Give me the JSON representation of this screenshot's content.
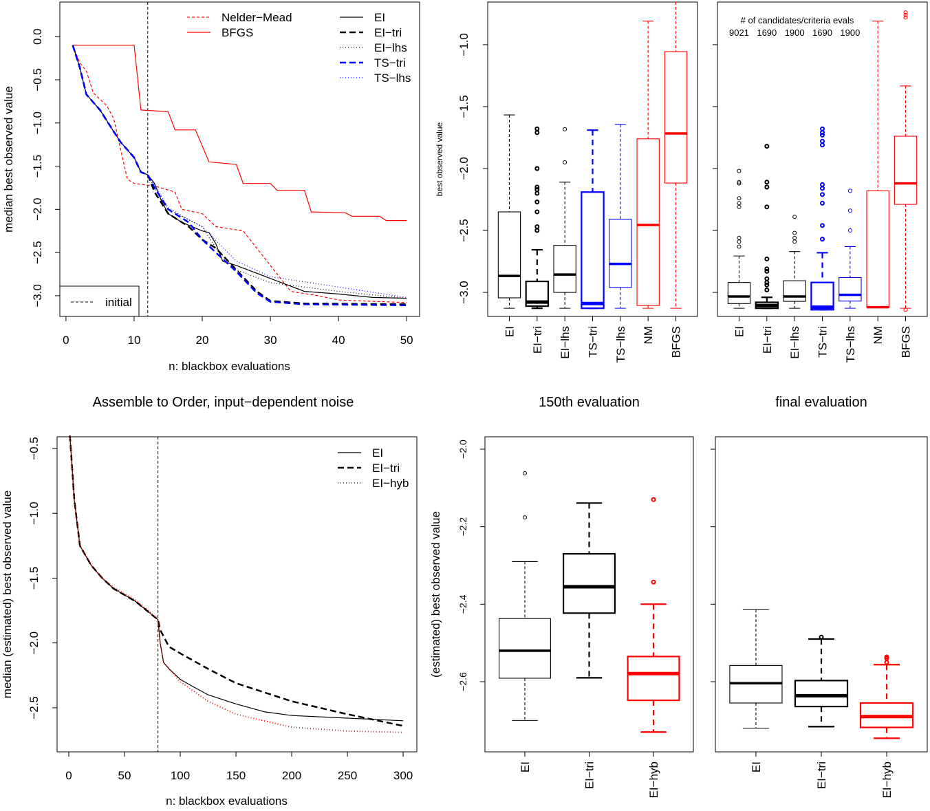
{
  "chart_data": [
    {
      "id": "p1",
      "type": "line",
      "xlabel": "n: blackbox evaluations",
      "ylabel": "median best observed value",
      "xlim": [
        -0.9,
        51.9
      ],
      "ylim": [
        -3.24,
        0.4
      ],
      "xticks": [
        0,
        10,
        20,
        30,
        40,
        50
      ],
      "yticks": [
        0.0,
        -0.5,
        -1.0,
        -1.5,
        -2.0,
        -2.5,
        -3.0
      ],
      "ytick_labels": [
        "0.0",
        "−0.5",
        "−1.0",
        "−1.5",
        "−2.0",
        "−2.5",
        "−3.0"
      ],
      "vline": 12,
      "series": [
        {
          "name": "Nelder−Mead",
          "color": "#ff0000",
          "lty": "dashed-thin",
          "x": [
            1,
            2,
            3,
            4,
            6,
            7,
            8,
            9,
            10,
            13,
            16,
            17,
            20,
            22,
            26,
            28,
            30,
            31,
            33,
            37,
            40,
            50
          ],
          "y": [
            -0.1,
            -0.3,
            -0.4,
            -0.65,
            -0.8,
            -0.95,
            -1.3,
            -1.65,
            -1.7,
            -1.73,
            -1.8,
            -2.0,
            -2.05,
            -2.2,
            -2.25,
            -2.45,
            -2.65,
            -2.75,
            -2.95,
            -3.0,
            -3.05,
            -3.08
          ]
        },
        {
          "name": "BFGS",
          "color": "#ff0000",
          "lty": "solid",
          "x": [
            1,
            10,
            11,
            15,
            16,
            19,
            21,
            25,
            26,
            30,
            31,
            35,
            36,
            41,
            42,
            46,
            47,
            50
          ],
          "y": [
            -0.1,
            -0.1,
            -0.85,
            -0.87,
            -1.08,
            -1.08,
            -1.45,
            -1.48,
            -1.7,
            -1.7,
            -1.78,
            -1.78,
            -2.03,
            -2.04,
            -2.08,
            -2.08,
            -2.13,
            -2.13
          ]
        },
        {
          "name": "EI",
          "color": "#000000",
          "lty": "solid",
          "x": [
            1,
            2,
            3,
            5,
            7,
            8,
            10,
            11,
            12,
            13,
            14,
            15,
            17,
            20,
            21,
            22,
            23,
            25,
            30,
            35,
            40,
            45,
            50
          ],
          "y": [
            -0.1,
            -0.35,
            -0.67,
            -0.85,
            -1.1,
            -1.22,
            -1.4,
            -1.57,
            -1.6,
            -1.7,
            -1.9,
            -2.05,
            -2.15,
            -2.25,
            -2.27,
            -2.4,
            -2.6,
            -2.65,
            -2.8,
            -2.95,
            -2.98,
            -3.02,
            -3.03
          ]
        },
        {
          "name": "EI−tri",
          "color": "#000000",
          "lty": "dashed",
          "x": [
            1,
            2,
            3,
            5,
            7,
            8,
            10,
            11,
            12,
            13,
            15,
            18,
            20,
            22,
            25,
            28,
            30,
            35,
            50
          ],
          "y": [
            -0.1,
            -0.35,
            -0.67,
            -0.85,
            -1.1,
            -1.22,
            -1.4,
            -1.57,
            -1.6,
            -1.8,
            -2.05,
            -2.2,
            -2.35,
            -2.45,
            -2.7,
            -2.95,
            -3.06,
            -3.09,
            -3.1
          ]
        },
        {
          "name": "EI−lhs",
          "color": "#000000",
          "lty": "dotted",
          "x": [
            1,
            2,
            3,
            5,
            7,
            8,
            10,
            11,
            12,
            13,
            15,
            18,
            20,
            22,
            25,
            30,
            40,
            50
          ],
          "y": [
            -0.1,
            -0.35,
            -0.67,
            -0.85,
            -1.1,
            -1.22,
            -1.4,
            -1.57,
            -1.6,
            -1.75,
            -2.0,
            -2.12,
            -2.2,
            -2.45,
            -2.7,
            -2.85,
            -2.95,
            -3.03
          ]
        },
        {
          "name": "TS−tri",
          "color": "#0000ff",
          "lty": "dashed",
          "x": [
            1,
            2,
            3,
            5,
            7,
            8,
            10,
            11,
            12,
            13,
            15,
            18,
            20,
            22,
            25,
            28,
            30,
            35,
            50
          ],
          "y": [
            -0.1,
            -0.35,
            -0.67,
            -0.85,
            -1.1,
            -1.22,
            -1.4,
            -1.57,
            -1.6,
            -1.75,
            -2.0,
            -2.15,
            -2.35,
            -2.5,
            -2.72,
            -2.97,
            -3.07,
            -3.1,
            -3.11
          ]
        },
        {
          "name": "TS−lhs",
          "color": "#0000ff",
          "lty": "dotted",
          "x": [
            1,
            2,
            3,
            5,
            7,
            8,
            10,
            11,
            12,
            13,
            15,
            18,
            20,
            25,
            30,
            40,
            50
          ],
          "y": [
            -0.1,
            -0.35,
            -0.67,
            -0.85,
            -1.1,
            -1.22,
            -1.4,
            -1.57,
            -1.6,
            -1.72,
            -1.98,
            -2.12,
            -2.2,
            -2.6,
            -2.78,
            -2.9,
            -3.02
          ]
        }
      ],
      "legend_placement": "top-right",
      "initial_legend": {
        "label": "initial",
        "placement": "bottom-left"
      }
    },
    {
      "id": "p2",
      "type": "box",
      "ylabel": "best observed value",
      "ylim": [
        -3.194,
        -0.656
      ],
      "yticks": [
        -1.0,
        -1.5,
        -2.0,
        -2.5,
        -3.0
      ],
      "ytick_labels": [
        "−1.0",
        "−1.5",
        "−2.0",
        "−2.5",
        "−3.0"
      ],
      "categories": [
        "EI",
        "EI−tri",
        "EI−lhs",
        "TS−tri",
        "TS−lhs",
        "NM",
        "BFGS"
      ],
      "colors": [
        "#000000",
        "#000000",
        "#000000",
        "#0000ff",
        "#0000ff",
        "#ff0000",
        "#ff0000"
      ],
      "thick": [
        false,
        true,
        false,
        true,
        false,
        false,
        false
      ],
      "boxes": [
        {
          "lower": -3.128,
          "q1": -3.044,
          "median": -2.867,
          "q3": -2.35,
          "upper": -1.567,
          "outliers": []
        },
        {
          "lower": -3.128,
          "q1": -3.111,
          "median": -3.078,
          "q3": -2.911,
          "upper": -2.656,
          "outliers": [
            -1.68,
            -1.71,
            -2.0,
            -2.15,
            -2.17,
            -2.2,
            -2.27,
            -2.35,
            -2.47,
            -2.5
          ]
        },
        {
          "lower": -3.128,
          "q1": -3.0,
          "median": -2.856,
          "q3": -2.62,
          "upper": -2.11,
          "outliers": [
            -1.683,
            -1.95
          ]
        },
        {
          "lower": -3.128,
          "q1": -3.128,
          "median": -3.09,
          "q3": -2.19,
          "upper": -1.69,
          "outliers": []
        },
        {
          "lower": -3.128,
          "q1": -2.96,
          "median": -2.77,
          "q3": -2.41,
          "upper": -1.644,
          "outliers": []
        },
        {
          "lower": -3.128,
          "q1": -3.106,
          "median": -2.456,
          "q3": -1.76,
          "upper": -0.81,
          "outliers": []
        },
        {
          "lower": -3.128,
          "q1": -2.117,
          "median": -1.717,
          "q3": -1.056,
          "upper": -0.6,
          "outliers": []
        }
      ]
    },
    {
      "id": "p3",
      "type": "box",
      "ylim": [
        -3.194,
        -0.656
      ],
      "categories": [
        "EI",
        "EI−tri",
        "EI−lhs",
        "TS−tri",
        "TS−lhs",
        "NM",
        "BFGS"
      ],
      "colors": [
        "#000000",
        "#000000",
        "#000000",
        "#0000ff",
        "#0000ff",
        "#ff0000",
        "#ff0000"
      ],
      "thick": [
        false,
        true,
        false,
        true,
        false,
        false,
        false
      ],
      "annotation": {
        "title": "# of candidates/criteria evals",
        "values": [
          "9021",
          "1690",
          "1900",
          "1690",
          "1900"
        ]
      },
      "boxes": [
        {
          "lower": -3.128,
          "q1": -3.09,
          "median": -3.033,
          "q3": -2.92,
          "upper": -2.706,
          "outliers": [
            -2.02,
            -2.11,
            -2.12,
            -2.24,
            -2.28,
            -2.31,
            -2.56,
            -2.59,
            -2.63
          ]
        },
        {
          "lower": -3.128,
          "q1": -3.128,
          "median": -3.106,
          "q3": -3.08,
          "upper": -3.04,
          "outliers": [
            -1.82,
            -2.11,
            -2.15,
            -2.31,
            -2.73,
            -2.81,
            -2.83,
            -2.89,
            -2.92,
            -2.94,
            -2.98
          ]
        },
        {
          "lower": -3.128,
          "q1": -3.072,
          "median": -3.033,
          "q3": -2.906,
          "upper": -2.67,
          "outliers": [
            -2.39,
            -2.52,
            -2.56,
            -2.59
          ]
        },
        {
          "lower": -3.14,
          "q1": -3.14,
          "median": -3.12,
          "q3": -2.92,
          "upper": -2.68,
          "outliers": [
            -1.68,
            -1.71,
            -1.73,
            -1.78,
            -1.81,
            -2.13,
            -2.16,
            -2.21,
            -2.28,
            -2.46,
            -2.57
          ]
        },
        {
          "lower": -3.128,
          "q1": -3.07,
          "median": -3.02,
          "q3": -2.88,
          "upper": -2.63,
          "outliers": [
            -2.18,
            -2.34,
            -2.5
          ]
        },
        {
          "lower": -3.12,
          "q1": -3.12,
          "median": -3.12,
          "q3": -2.18,
          "upper": -0.81,
          "outliers": []
        },
        {
          "lower": -3.128,
          "q1": -2.289,
          "median": -2.12,
          "q3": -1.739,
          "upper": -1.333,
          "outliers": [
            -0.74,
            -0.76,
            -0.78,
            -3.14
          ]
        }
      ]
    },
    {
      "id": "p4",
      "type": "line",
      "title": "Assemble to Order, input−dependent noise",
      "xlabel": "n: blackbox evaluations",
      "ylabel": "median (estimated) best observed value",
      "xlim": [
        -10.5,
        312.3
      ],
      "ylim": [
        -2.84,
        -0.41
      ],
      "xticks": [
        0,
        50,
        100,
        150,
        200,
        250,
        300
      ],
      "yticks": [
        -0.5,
        -1.0,
        -1.5,
        -2.0,
        -2.5
      ],
      "ytick_labels": [
        "−0.5",
        "−1.0",
        "−1.5",
        "−2.0",
        "−2.5"
      ],
      "vline": 80,
      "series": [
        {
          "name": "EI",
          "color": "#000000",
          "lty": "solid",
          "x": [
            1,
            5,
            10,
            20,
            30,
            40,
            50,
            60,
            70,
            80,
            82,
            85,
            90,
            100,
            110,
            125,
            150,
            175,
            200,
            250,
            300
          ],
          "y": [
            -0.4,
            -0.9,
            -1.25,
            -1.4,
            -1.5,
            -1.58,
            -1.63,
            -1.68,
            -1.75,
            -1.82,
            -2.0,
            -2.15,
            -2.2,
            -2.28,
            -2.33,
            -2.4,
            -2.47,
            -2.53,
            -2.56,
            -2.58,
            -2.6
          ]
        },
        {
          "name": "EI−tri",
          "color": "#000000",
          "lty": "dashed",
          "x": [
            1,
            5,
            10,
            20,
            30,
            40,
            50,
            60,
            70,
            80,
            82,
            90,
            100,
            125,
            150,
            175,
            200,
            250,
            300
          ],
          "y": [
            -0.4,
            -0.9,
            -1.25,
            -1.4,
            -1.5,
            -1.58,
            -1.63,
            -1.68,
            -1.75,
            -1.82,
            -1.9,
            -2.03,
            -2.08,
            -2.2,
            -2.31,
            -2.38,
            -2.45,
            -2.55,
            -2.64
          ]
        },
        {
          "name": "EI−hyb",
          "color": "#ff0000",
          "lty": "dotted",
          "x": [
            1,
            5,
            10,
            20,
            30,
            40,
            50,
            60,
            70,
            80,
            82,
            85,
            100,
            125,
            150,
            175,
            200,
            250,
            300
          ],
          "y": [
            -0.4,
            -0.9,
            -1.25,
            -1.4,
            -1.5,
            -1.57,
            -1.62,
            -1.67,
            -1.74,
            -1.82,
            -2.0,
            -2.15,
            -2.3,
            -2.45,
            -2.55,
            -2.6,
            -2.65,
            -2.68,
            -2.69
          ]
        }
      ],
      "legend_placement": "top-right"
    },
    {
      "id": "p5",
      "type": "box",
      "title": "150th evaluation",
      "ylabel": "(estimated) best observed value",
      "ylim": [
        -2.781,
        -1.968
      ],
      "yticks": [
        -2.0,
        -2.2,
        -2.4,
        -2.6
      ],
      "ytick_labels": [
        "−2.0",
        "−2.2",
        "−2.4",
        "−2.6"
      ],
      "categories": [
        "EI",
        "EI−tri",
        "EI−hyb"
      ],
      "colors": [
        "#000000",
        "#000000",
        "#ff0000"
      ],
      "thick": [
        false,
        true,
        true
      ],
      "boxes": [
        {
          "lower": -2.7,
          "q1": -2.591,
          "median": -2.52,
          "q3": -2.437,
          "upper": -2.29,
          "outliers": [
            -2.062,
            -2.176
          ]
        },
        {
          "lower": -2.59,
          "q1": -2.423,
          "median": -2.355,
          "q3": -2.27,
          "upper": -2.139,
          "outliers": []
        },
        {
          "lower": -2.73,
          "q1": -2.648,
          "median": -2.579,
          "q3": -2.535,
          "upper": -2.4,
          "outliers": [
            -2.13,
            -2.343
          ]
        }
      ]
    },
    {
      "id": "p6",
      "type": "box",
      "title": "final evaluation",
      "ylim": [
        -2.781,
        -1.968
      ],
      "categories": [
        "EI",
        "EI−tri",
        "EI−hyb"
      ],
      "colors": [
        "#000000",
        "#000000",
        "#ff0000"
      ],
      "thick": [
        false,
        true,
        true
      ],
      "boxes": [
        {
          "lower": -2.72,
          "q1": -2.655,
          "median": -2.604,
          "q3": -2.558,
          "upper": -2.414,
          "outliers": []
        },
        {
          "lower": -2.716,
          "q1": -2.664,
          "median": -2.636,
          "q3": -2.597,
          "upper": -2.49,
          "outliers": [
            -2.485
          ]
        },
        {
          "lower": -2.746,
          "q1": -2.718,
          "median": -2.69,
          "q3": -2.655,
          "upper": -2.556,
          "outliers": [
            -2.536,
            -2.54,
            -2.55
          ]
        }
      ]
    }
  ]
}
